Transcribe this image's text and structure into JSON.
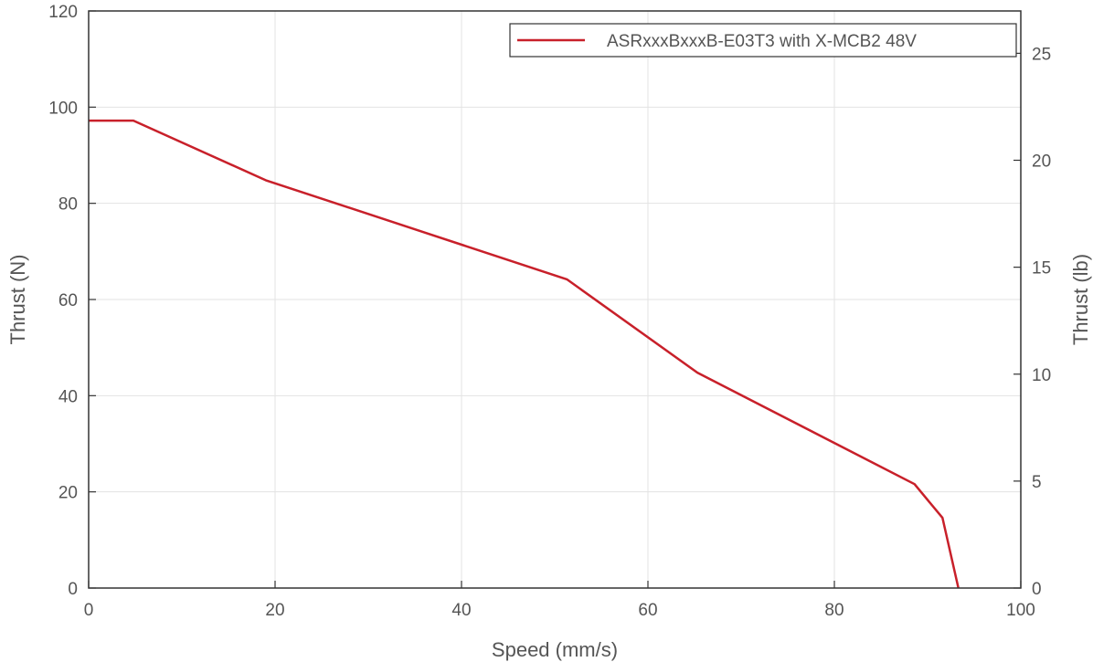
{
  "chart_data": {
    "type": "line",
    "xlabel": "Speed (mm/s)",
    "ylabel": "Thrust (N)",
    "y2label": "Thrust (lb)",
    "xlim": [
      0,
      100
    ],
    "ylim": [
      0,
      120
    ],
    "y2lim": [
      0,
      26.98
    ],
    "xticks": [
      "0",
      "20",
      "40",
      "60",
      "80",
      "100"
    ],
    "xtick_values": [
      0,
      20,
      40,
      60,
      80,
      100
    ],
    "yticks": [
      "0",
      "20",
      "40",
      "60",
      "80",
      "100",
      "120"
    ],
    "ytick_values": [
      0,
      20,
      40,
      60,
      80,
      100,
      120
    ],
    "y2ticks": [
      "0",
      "5",
      "10",
      "15",
      "20",
      "25"
    ],
    "y2tick_values": [
      0,
      5,
      10,
      15,
      20,
      25
    ],
    "grid": true,
    "legend_position": "top-right",
    "series": [
      {
        "name": "ASRxxxBxxxB-E03T3 with X-MCB2 48V",
        "color": "#c8202a",
        "x": [
          0,
          4.8,
          19,
          51.3,
          65.3,
          88.6,
          91.6,
          93.3
        ],
        "y": [
          97.2,
          97.2,
          84.8,
          64.2,
          44.8,
          21.6,
          14.6,
          0
        ]
      }
    ]
  }
}
